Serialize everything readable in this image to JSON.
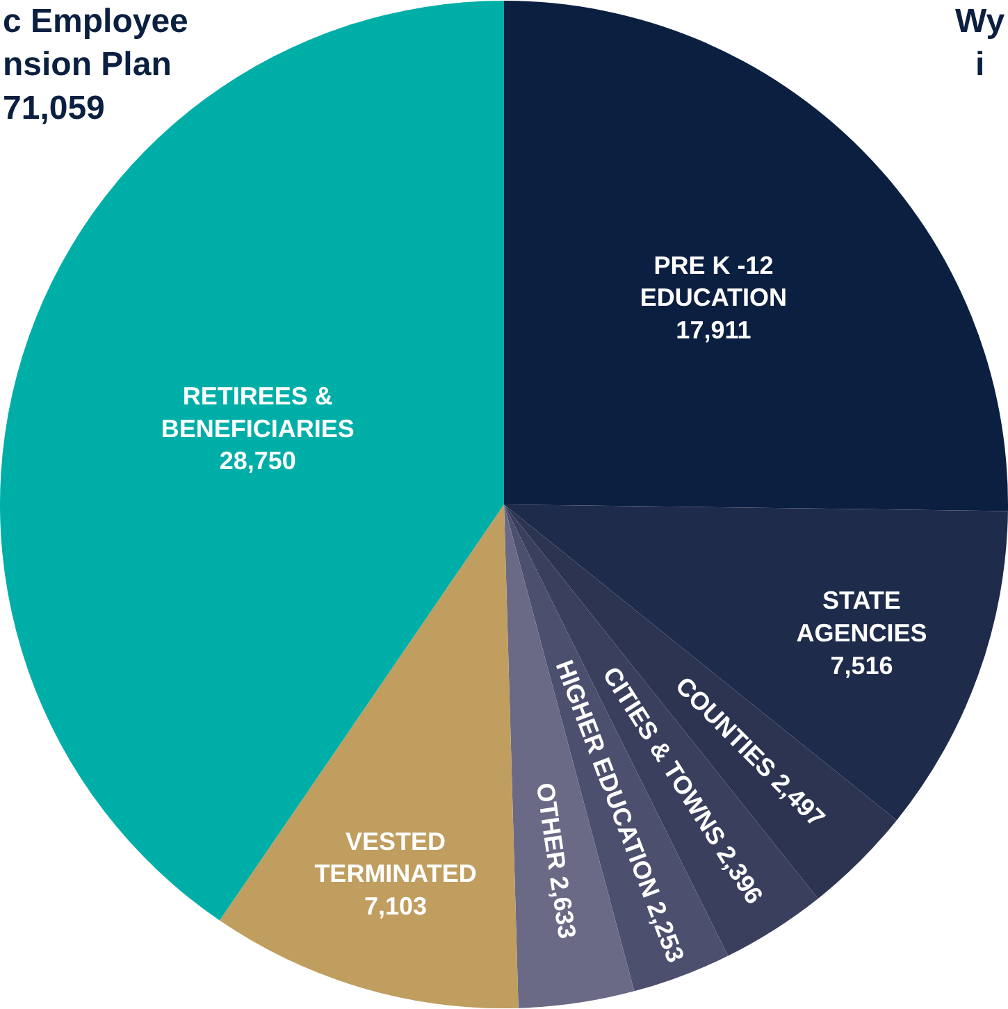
{
  "chart_data": {
    "type": "pie",
    "title": "c Employee\nnsion Plan\n71,059",
    "categories": [
      "PRE K -12\nEDUCATION",
      "STATE\nAGENCIES",
      "COUNTIES",
      "CITIES & TOWNS",
      "HIGHER EDUCATION",
      "OTHER",
      "VESTED\nTERMINATED",
      "RETIREES &\nBENEFICIARIES"
    ],
    "values": [
      17911,
      7516,
      2497,
      2396,
      2253,
      2633,
      7103,
      28750
    ],
    "colors": [
      "#0b1f40",
      "#1f2b4b",
      "#2d3452",
      "#3a3f5e",
      "#4c4f6e",
      "#6a6a86",
      "#bf9e5f",
      "#00aea8"
    ],
    "value_labels": [
      "17,911",
      "7,516",
      "2,497",
      "2,396",
      "2,253",
      "2,633",
      "7,103",
      "28,750"
    ],
    "annotations": [
      "Wy\ni"
    ]
  }
}
